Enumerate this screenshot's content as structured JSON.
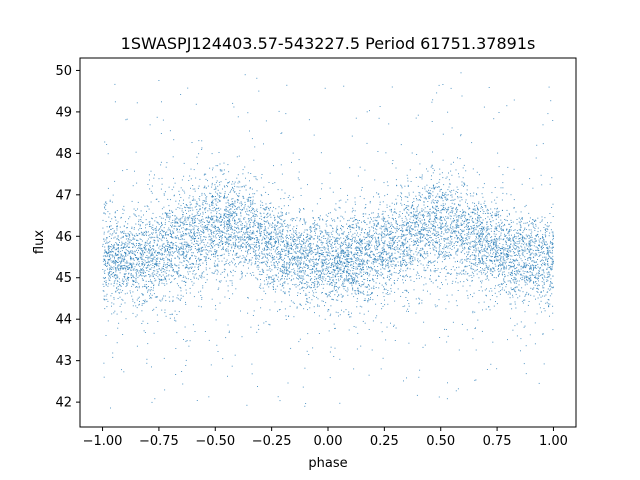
{
  "chart_data": {
    "type": "scatter",
    "title": "1SWASPJ124403.57-543227.5 Period 61751.37891s",
    "xlabel": "phase",
    "ylabel": "flux",
    "xlim": [
      -1.1,
      1.1
    ],
    "ylim": [
      41.4,
      50.3
    ],
    "xticks": [
      -1.0,
      -0.75,
      -0.5,
      -0.25,
      0.0,
      0.25,
      0.5,
      0.75,
      1.0
    ],
    "xtick_labels": [
      "−1.00",
      "−0.75",
      "−0.50",
      "−0.25",
      "0.00",
      "0.25",
      "0.50",
      "0.75",
      "1.00"
    ],
    "yticks": [
      42,
      43,
      44,
      45,
      46,
      47,
      48,
      49,
      50
    ],
    "ytick_labels": [
      "42",
      "43",
      "44",
      "45",
      "46",
      "47",
      "48",
      "49",
      "50"
    ],
    "grid": false,
    "marker_color": "#1f77b4",
    "series": [
      {
        "description_points": "phase-folded light curve, approx. density profile of flux vs phase",
        "x_profile": [
          -1.0,
          -0.9,
          -0.8,
          -0.7,
          -0.6,
          -0.5,
          -0.4,
          -0.3,
          -0.2,
          -0.1,
          0.0,
          0.1,
          0.2,
          0.3,
          0.4,
          0.5,
          0.6,
          0.7,
          0.8,
          0.9,
          1.0
        ],
        "y_center": [
          45.5,
          45.45,
          45.5,
          45.7,
          46.0,
          46.2,
          46.2,
          45.95,
          45.65,
          45.45,
          45.4,
          45.45,
          45.55,
          45.8,
          46.1,
          46.25,
          46.1,
          45.85,
          45.6,
          45.45,
          45.45
        ],
        "y_spread": [
          0.55,
          0.55,
          0.55,
          0.6,
          0.65,
          0.65,
          0.6,
          0.55,
          0.55,
          0.55,
          0.55,
          0.55,
          0.55,
          0.6,
          0.65,
          0.65,
          0.6,
          0.55,
          0.55,
          0.55,
          0.55
        ]
      }
    ]
  }
}
